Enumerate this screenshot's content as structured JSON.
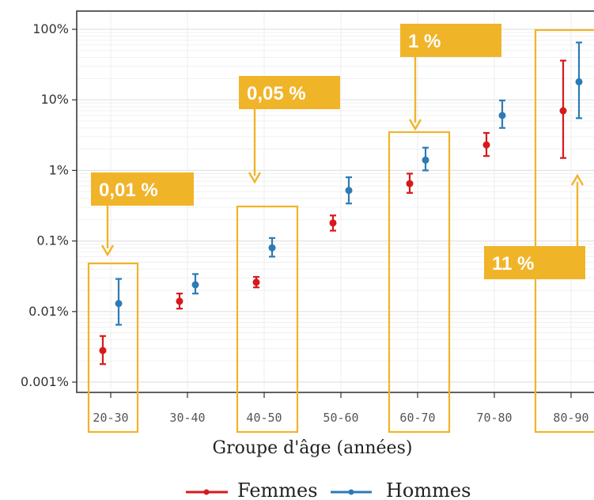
{
  "chart_data": {
    "type": "scatter",
    "categories": [
      "20-30",
      "30-40",
      "40-50",
      "50-60",
      "60-70",
      "70-80",
      "80-90"
    ],
    "ylim": [
      0.001,
      100
    ],
    "yscale": "log",
    "y_unit": "%",
    "yticks": [
      {
        "value": 0.001,
        "label": "0.001%"
      },
      {
        "value": 0.01,
        "label": "0.01%"
      },
      {
        "value": 0.1,
        "label": "0.1%"
      },
      {
        "value": 1,
        "label": "1%"
      },
      {
        "value": 10,
        "label": "10%"
      },
      {
        "value": 100,
        "label": "100%"
      }
    ],
    "xlabel": "Groupe d'âge (années)",
    "grid": true,
    "legend_position": "bottom",
    "series": [
      {
        "name": "Femmes",
        "color": "#d7191c",
        "values": [
          0.0028,
          0.014,
          0.026,
          0.18,
          0.65,
          2.3,
          7.0
        ],
        "lower": [
          0.0018,
          0.011,
          0.022,
          0.14,
          0.48,
          1.6,
          1.5
        ],
        "upper": [
          0.0045,
          0.018,
          0.031,
          0.23,
          0.9,
          3.4,
          36
        ]
      },
      {
        "name": "Hommes",
        "color": "#2c7bb6",
        "values": [
          0.013,
          0.024,
          0.08,
          0.52,
          1.4,
          6.0,
          18
        ],
        "lower": [
          0.0065,
          0.018,
          0.06,
          0.34,
          1.0,
          4.0,
          5.5
        ],
        "upper": [
          0.029,
          0.034,
          0.11,
          0.8,
          2.1,
          9.8,
          65
        ]
      }
    ],
    "annotations": [
      {
        "text": "0,01 %",
        "category": "20-30"
      },
      {
        "text": "0,05 %",
        "category": "40-50"
      },
      {
        "text": "1 %",
        "category": "60-70"
      },
      {
        "text": "11 %",
        "category": "80-90"
      }
    ],
    "highlight_color": "#f0b429"
  }
}
